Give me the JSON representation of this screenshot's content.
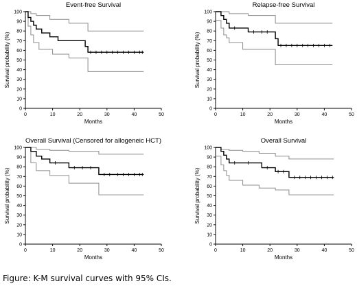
{
  "caption": "Figure: K-M survival curves with 95% CIs.",
  "colors": {
    "estimate": "#000000",
    "ci": "#8c8c8c",
    "axis": "#000000"
  },
  "chart_data": [
    {
      "type": "line",
      "title": "Event-free Survival",
      "xlabel": "Months",
      "ylabel": "Survival probability (%)",
      "xlim": [
        0,
        50
      ],
      "ylim": [
        0,
        100
      ],
      "xticks": [
        0,
        10,
        20,
        30,
        40,
        50
      ],
      "yticks": [
        0,
        10,
        20,
        30,
        40,
        50,
        60,
        70,
        80,
        90,
        100
      ],
      "grid": false,
      "series": [
        {
          "role": "estimate",
          "step": true,
          "x": [
            0,
            1,
            2,
            3,
            4,
            6,
            9,
            10,
            12,
            16,
            22,
            23,
            43.5
          ],
          "y": [
            100,
            94,
            90,
            86,
            82,
            78,
            74,
            74,
            70,
            70,
            64,
            58,
            58
          ]
        },
        {
          "role": "ci_upper",
          "step": true,
          "x": [
            0,
            2,
            4,
            9,
            16,
            23,
            43.5
          ],
          "y": [
            100,
            98,
            96,
            92,
            88,
            80,
            80
          ]
        },
        {
          "role": "ci_lower",
          "step": true,
          "x": [
            0,
            1,
            2,
            3,
            5,
            10,
            16,
            23,
            43.5
          ],
          "y": [
            100,
            85,
            76,
            68,
            61,
            56,
            52,
            38,
            38
          ]
        }
      ],
      "censor_marks": {
        "x": [
          24,
          26,
          28,
          30,
          32,
          34,
          36,
          38,
          40,
          42,
          43
        ],
        "y": 58
      }
    },
    {
      "type": "line",
      "title": "Relapse-free Survival",
      "xlabel": "Months",
      "ylabel": "Survival probability (%)",
      "xlim": [
        0,
        50
      ],
      "ylim": [
        0,
        100
      ],
      "xticks": [
        0,
        10,
        20,
        30,
        40,
        50
      ],
      "yticks": [
        0,
        10,
        20,
        30,
        40,
        50,
        60,
        70,
        80,
        90,
        100
      ],
      "grid": false,
      "series": [
        {
          "role": "estimate",
          "step": true,
          "x": [
            0,
            2,
            3,
            4,
            5,
            10,
            12,
            22,
            23,
            43
          ],
          "y": [
            100,
            96,
            92,
            88,
            83,
            83,
            79,
            72,
            65,
            65
          ]
        },
        {
          "role": "ci_upper",
          "step": true,
          "x": [
            0,
            5,
            12,
            22,
            43
          ],
          "y": [
            100,
            98,
            96,
            88,
            88
          ]
        },
        {
          "role": "ci_lower",
          "step": true,
          "x": [
            0,
            2,
            3,
            4,
            5,
            10,
            22,
            43
          ],
          "y": [
            91,
            83,
            76,
            73,
            68,
            61,
            45,
            45
          ]
        }
      ],
      "censor_marks": {
        "x": [
          7,
          14,
          17,
          19,
          24,
          26,
          28,
          30,
          32,
          34,
          36,
          38,
          40,
          42
        ],
        "y": [
          83,
          79,
          79,
          79,
          65,
          65,
          65,
          65,
          65,
          65,
          65,
          65,
          65,
          65
        ]
      }
    },
    {
      "type": "line",
      "title": "Overall Survival (Censored for allogeneic HCT)",
      "xlabel": "Months",
      "ylabel": "Survival probability (%)",
      "xlim": [
        0,
        50
      ],
      "ylim": [
        0,
        100
      ],
      "xticks": [
        0,
        10,
        20,
        30,
        40,
        50
      ],
      "yticks": [
        0,
        10,
        20,
        30,
        40,
        50,
        60,
        70,
        80,
        90,
        100
      ],
      "grid": false,
      "series": [
        {
          "role": "estimate",
          "step": true,
          "x": [
            0,
            2,
            4,
            6,
            9,
            16,
            27,
            43.5
          ],
          "y": [
            100,
            96,
            91,
            88,
            84,
            79,
            72,
            72
          ]
        },
        {
          "role": "ci_upper",
          "step": true,
          "x": [
            0,
            4,
            9,
            16,
            27,
            43.5
          ],
          "y": [
            100,
            98,
            97,
            96,
            93,
            93
          ]
        },
        {
          "role": "ci_lower",
          "step": true,
          "x": [
            0,
            2,
            4,
            9,
            16,
            27,
            43.5
          ],
          "y": [
            100,
            84,
            76,
            71,
            63,
            51,
            51
          ]
        }
      ],
      "censor_marks": {
        "x": [
          11,
          18,
          21,
          24,
          29,
          31,
          34,
          36,
          38,
          40,
          42,
          43
        ],
        "y": [
          84,
          79,
          79,
          79,
          72,
          72,
          72,
          72,
          72,
          72,
          72,
          72
        ]
      }
    },
    {
      "type": "line",
      "title": "Overall Survival",
      "xlabel": "Months",
      "ylabel": "Survival probability (%)",
      "xlim": [
        0,
        50
      ],
      "ylim": [
        0,
        100
      ],
      "xticks": [
        0,
        10,
        20,
        30,
        40,
        50
      ],
      "yticks": [
        0,
        10,
        20,
        30,
        40,
        50,
        60,
        70,
        80,
        90,
        100
      ],
      "grid": false,
      "series": [
        {
          "role": "estimate",
          "step": true,
          "x": [
            0,
            2,
            3,
            4,
            5,
            16,
            17,
            22,
            27,
            43.5
          ],
          "y": [
            100,
            96,
            92,
            88,
            84,
            84,
            79,
            75,
            69,
            69
          ]
        },
        {
          "role": "ci_upper",
          "step": true,
          "x": [
            0,
            2,
            5,
            10,
            16,
            22,
            27,
            43.5
          ],
          "y": [
            100,
            98,
            97,
            96,
            94,
            91,
            88,
            88
          ]
        },
        {
          "role": "ci_lower",
          "step": true,
          "x": [
            0,
            2,
            3,
            4,
            5,
            10,
            16,
            22,
            27,
            43.5
          ],
          "y": [
            91,
            82,
            76,
            71,
            66,
            61,
            58,
            56,
            51,
            51
          ]
        }
      ],
      "censor_marks": {
        "x": [
          7,
          12,
          19,
          23,
          25,
          29,
          31,
          33,
          35,
          37,
          39,
          41,
          43
        ],
        "y": [
          84,
          84,
          79,
          75,
          75,
          69,
          69,
          69,
          69,
          69,
          69,
          69,
          69
        ]
      }
    }
  ]
}
